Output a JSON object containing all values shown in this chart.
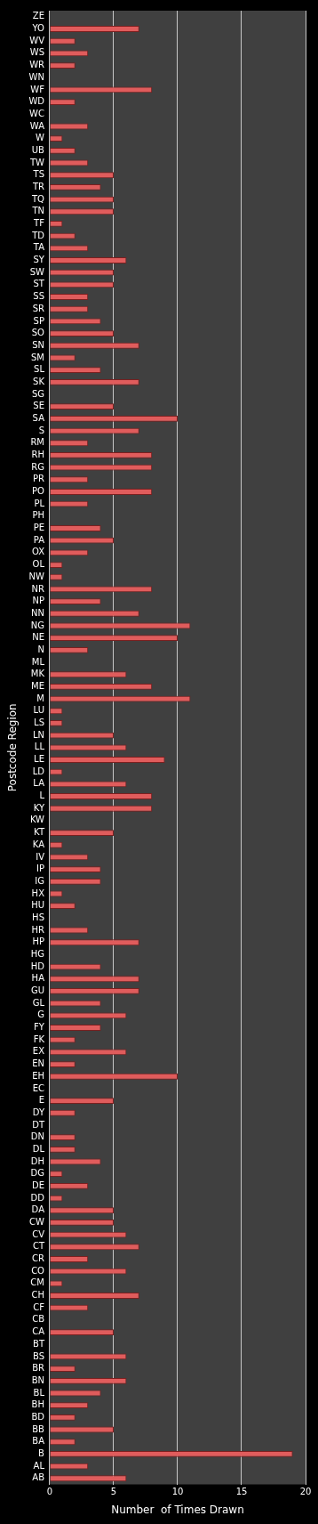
{
  "chart_data": {
    "type": "bar",
    "orientation": "horizontal",
    "xlabel": "Number  of Times Drawn",
    "ylabel": "Postcode Region",
    "categories": [
      "ZE",
      "YO",
      "WV",
      "WS",
      "WR",
      "WN",
      "WF",
      "WD",
      "WC",
      "WA",
      "W",
      "UB",
      "TW",
      "TS",
      "TR",
      "TQ",
      "TN",
      "TF",
      "TD",
      "TA",
      "SY",
      "SW",
      "ST",
      "SS",
      "SR",
      "SP",
      "SO",
      "SN",
      "SM",
      "SL",
      "SK",
      "SG",
      "SE",
      "SA",
      "S",
      "RM",
      "RH",
      "RG",
      "PR",
      "PO",
      "PL",
      "PH",
      "PE",
      "PA",
      "OX",
      "OL",
      "NW",
      "NR",
      "NP",
      "NN",
      "NG",
      "NE",
      "N",
      "ML",
      "MK",
      "ME",
      "M",
      "LU",
      "LS",
      "LN",
      "LL",
      "LE",
      "LD",
      "LA",
      "L",
      "KY",
      "KW",
      "KT",
      "KA",
      "IV",
      "IP",
      "IG",
      "HX",
      "HU",
      "HS",
      "HR",
      "HP",
      "HG",
      "HD",
      "HA",
      "GU",
      "GL",
      "G",
      "FY",
      "FK",
      "EX",
      "EN",
      "EH",
      "EC",
      "E",
      "DY",
      "DT",
      "DN",
      "DL",
      "DH",
      "DG",
      "DE",
      "DD",
      "DA",
      "CW",
      "CV",
      "CT",
      "CR",
      "CO",
      "CM",
      "CH",
      "CF",
      "CB",
      "CA",
      "BT",
      "BS",
      "BR",
      "BN",
      "BL",
      "BH",
      "BD",
      "BB",
      "BA",
      "B",
      "AL",
      "AB"
    ],
    "values": [
      0,
      7,
      2,
      3,
      2,
      0,
      8,
      2,
      0,
      3,
      1,
      2,
      3,
      5,
      4,
      5,
      5,
      1,
      2,
      3,
      6,
      5,
      5,
      3,
      3,
      4,
      5,
      7,
      2,
      4,
      7,
      0,
      5,
      10,
      7,
      3,
      8,
      8,
      3,
      8,
      3,
      0,
      4,
      5,
      3,
      1,
      1,
      8,
      4,
      7,
      11,
      10,
      3,
      0,
      6,
      8,
      11,
      1,
      1,
      5,
      6,
      9,
      1,
      6,
      8,
      8,
      0,
      5,
      1,
      3,
      4,
      4,
      1,
      2,
      0,
      3,
      7,
      0,
      4,
      7,
      7,
      4,
      6,
      4,
      2,
      6,
      2,
      10,
      0,
      5,
      2,
      0,
      2,
      2,
      4,
      1,
      3,
      1,
      5,
      5,
      6,
      7,
      3,
      6,
      1,
      7,
      3,
      0,
      5,
      0,
      6,
      2,
      6,
      4,
      3,
      2,
      5,
      2,
      19,
      3,
      6
    ],
    "color": "#e05c5c",
    "xlim": [
      0,
      20
    ],
    "xticks": [
      0,
      5,
      10,
      15,
      20
    ],
    "grid": "x",
    "legend": false
  }
}
